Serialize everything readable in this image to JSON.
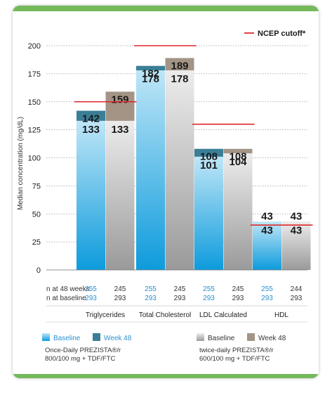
{
  "chart_data": {
    "type": "bar",
    "ylabel": "Median concentration (mg/dL)",
    "ylim": [
      0,
      210
    ],
    "yticks": [
      "0",
      "25",
      "50",
      "75",
      "100",
      "125",
      "150",
      "175",
      "200"
    ],
    "ytick_values": [
      0,
      25,
      50,
      75,
      100,
      125,
      150,
      175,
      200
    ],
    "grid": true,
    "legend_top": {
      "label": "NCEP cutoff*",
      "color": "#e0262a"
    },
    "groups": [
      {
        "name": "Triglycerides",
        "once": {
          "baseline": 133,
          "week48": 142,
          "n48": "255",
          "nbase": "293"
        },
        "twice": {
          "baseline": 133,
          "week48": 159,
          "n48": "245",
          "nbase": "293"
        },
        "cutoff": 150
      },
      {
        "name": "Total Cholesterol",
        "once": {
          "baseline": 178,
          "week48": 182,
          "n48": "255",
          "nbase": "293"
        },
        "twice": {
          "baseline": 178,
          "week48": 189,
          "n48": "245",
          "nbase": "293"
        },
        "cutoff": 200
      },
      {
        "name": "LDL Calculated",
        "once": {
          "baseline": 101,
          "week48": 108,
          "n48": "255",
          "nbase": "293"
        },
        "twice": {
          "baseline": 104,
          "week48": 108,
          "n48": "245",
          "nbase": "293"
        },
        "cutoff": 130
      },
      {
        "name": "HDL",
        "once": {
          "baseline": 43,
          "week48": 43,
          "n48": "255",
          "nbase": "293"
        },
        "twice": {
          "baseline": 43,
          "week48": 43,
          "n48": "244",
          "nbase": "293"
        },
        "cutoff": 40
      }
    ],
    "row_labels": {
      "n48": "n at 48 weeks",
      "nbase": "n at baseline"
    },
    "legend": {
      "once": {
        "baseline": "Baseline",
        "week48": "Week 48",
        "line1": "Once-Daily PREZISTA®/r",
        "line2": "800/100 mg + TDF/FTC"
      },
      "twice": {
        "baseline": "Baseline",
        "week48": "Week 48",
        "line1": "twice-daily PREZISTA®/r",
        "line2": "600/100 mg + TDF/FTC"
      }
    },
    "colors": {
      "once_base_top": "#bfe6f7",
      "once_base_bottom": "#0d9bdc",
      "once_week": "#3a7f96",
      "twice_base_top": "#ececec",
      "twice_base_bottom": "#9a9a9a",
      "twice_week": "#a39486",
      "cutoff": "#e0262a",
      "n_blue": "#2a8fd0",
      "frame": "#74b95a"
    }
  }
}
